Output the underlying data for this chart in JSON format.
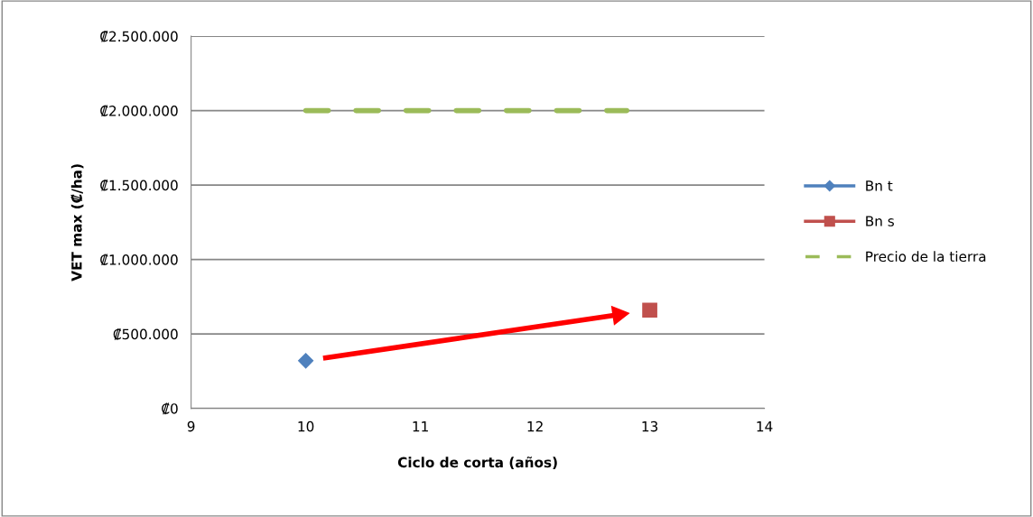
{
  "chart_data": {
    "type": "line",
    "xlabel": "Ciclo de corta (años)",
    "ylabel": "VET max (₡/ha)",
    "xlim": [
      9,
      14
    ],
    "xticks": [
      9,
      10,
      11,
      12,
      13,
      14
    ],
    "ylim": [
      0,
      2500000
    ],
    "yticks": [
      {
        "value": 0,
        "label": "₡0"
      },
      {
        "value": 500000,
        "label": "₡500.000"
      },
      {
        "value": 1000000,
        "label": "₡1.000.000"
      },
      {
        "value": 1500000,
        "label": "₡1.500.000"
      },
      {
        "value": 2000000,
        "label": "₡2.000.000"
      },
      {
        "value": 2500000,
        "label": "₡2.500.000"
      }
    ],
    "grid": "y",
    "legend": "right",
    "series": [
      {
        "name": "Bn t",
        "color": "#4f81bd",
        "x": [
          10
        ],
        "values": [
          320000
        ],
        "marker": "diamond",
        "line_style": "solid"
      },
      {
        "name": "Bn s",
        "color": "#c0504d",
        "x": [
          13
        ],
        "values": [
          660000
        ],
        "marker": "square",
        "line_style": "solid"
      },
      {
        "name": "Precio de la tierra",
        "color": "#9bbb59",
        "x": [
          10,
          12.8
        ],
        "values": [
          2000000,
          2000000
        ],
        "marker": "none",
        "line_style": "dashed"
      }
    ]
  }
}
